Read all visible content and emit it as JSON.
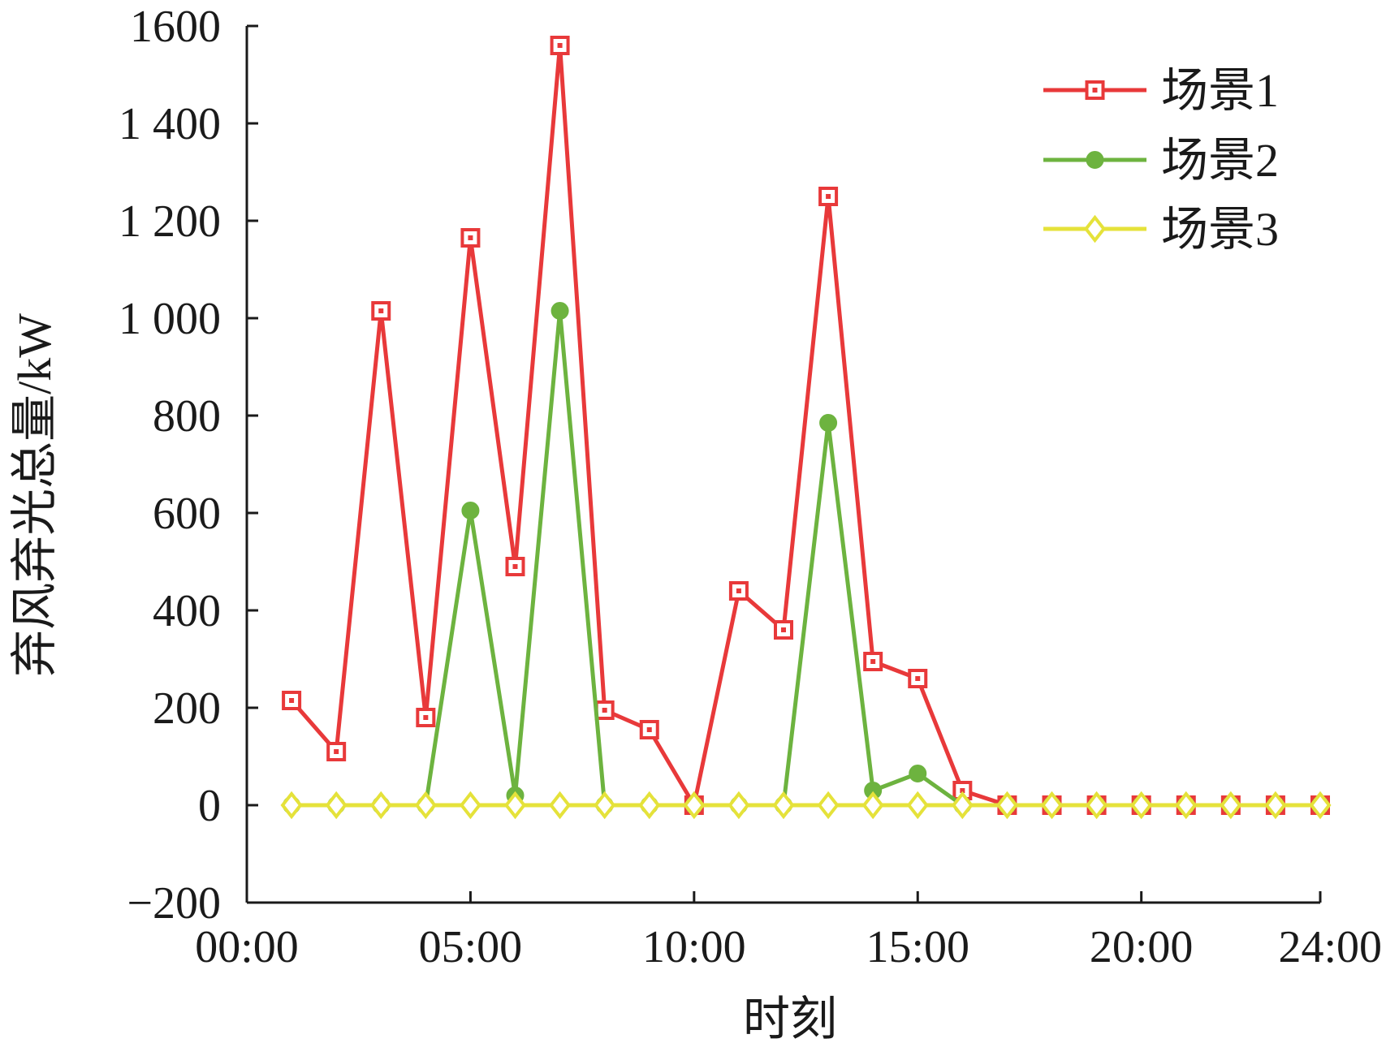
{
  "chart_data": {
    "type": "line",
    "title": "",
    "xlabel": "时刻",
    "ylabel": "弃风弃光总量/kW",
    "xlim": [
      0,
      24
    ],
    "ylim": [
      -200,
      1600
    ],
    "grid": false,
    "legend_position": "top-right",
    "x_ticks": [
      {
        "value": 0,
        "label": "00:00"
      },
      {
        "value": 5,
        "label": "05:00"
      },
      {
        "value": 10,
        "label": "10:00"
      },
      {
        "value": 15,
        "label": "15:00"
      },
      {
        "value": 20,
        "label": "20:00"
      },
      {
        "value": 24,
        "label": "24:00"
      }
    ],
    "y_ticks": [
      {
        "value": 1600,
        "label": "1600"
      },
      {
        "value": 1400,
        "label": "1 400"
      },
      {
        "value": 1200,
        "label": "1 200"
      },
      {
        "value": 1000,
        "label": "1 000"
      },
      {
        "value": 800,
        "label": "800"
      },
      {
        "value": 600,
        "label": "600"
      },
      {
        "value": 400,
        "label": "400"
      },
      {
        "value": 200,
        "label": "200"
      },
      {
        "value": 0,
        "label": "0"
      },
      {
        "value": -200,
        "label": "−200"
      }
    ],
    "x": [
      1,
      2,
      3,
      4,
      5,
      6,
      7,
      8,
      9,
      10,
      11,
      12,
      13,
      14,
      15,
      16,
      17,
      18,
      19,
      20,
      21,
      22,
      23,
      24
    ],
    "series": [
      {
        "name": "场景1",
        "color": "#e8393a",
        "marker": "square",
        "values": [
          215,
          110,
          1015,
          180,
          1165,
          490,
          1560,
          195,
          155,
          0,
          440,
          360,
          1250,
          295,
          260,
          30,
          0,
          0,
          0,
          0,
          0,
          0,
          0,
          0
        ]
      },
      {
        "name": "场景2",
        "color": "#6db33f",
        "marker": "circle",
        "values": [
          0,
          0,
          0,
          0,
          605,
          20,
          1015,
          0,
          0,
          0,
          0,
          0,
          785,
          30,
          65,
          0,
          0,
          0,
          0,
          0,
          0,
          0,
          0,
          0
        ]
      },
      {
        "name": "场景3",
        "color": "#e5e23a",
        "marker": "diamond",
        "values": [
          0,
          0,
          0,
          0,
          0,
          0,
          0,
          0,
          0,
          0,
          0,
          0,
          0,
          0,
          0,
          0,
          0,
          0,
          0,
          0,
          0,
          0,
          0,
          0
        ]
      }
    ]
  }
}
